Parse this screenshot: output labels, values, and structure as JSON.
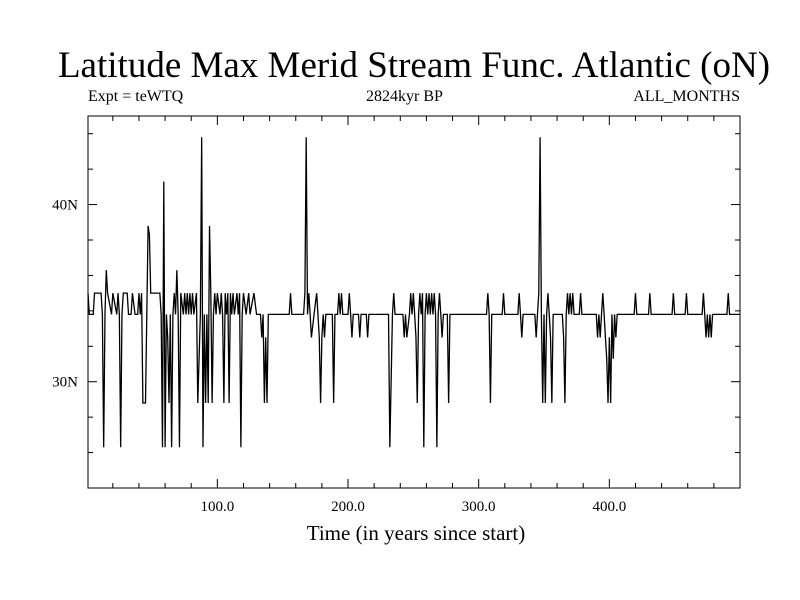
{
  "chart_data": {
    "type": "line",
    "title": "Latitude Max Merid Stream Func. Atlantic (oN)",
    "subtitle_left": "Expt = teWTQ",
    "subtitle_center": "2824kyr BP",
    "subtitle_right": "ALL_MONTHS",
    "xlabel": "Time (in years since start)",
    "ylabel": "",
    "xlim": [
      1,
      500
    ],
    "ylim": [
      24,
      45
    ],
    "x_ticks": [
      {
        "value": 100,
        "label": "100.0"
      },
      {
        "value": 200,
        "label": "200.0"
      },
      {
        "value": 300,
        "label": "300.0"
      },
      {
        "value": 400,
        "label": "400.0"
      }
    ],
    "y_ticks": [
      {
        "value": 30,
        "label": "30N"
      },
      {
        "value": 40,
        "label": "40N"
      }
    ],
    "grid": false,
    "series": [
      {
        "color": "#000000",
        "points": [
          [
            1,
            35.0
          ],
          [
            2,
            33.8
          ],
          [
            5,
            33.8
          ],
          [
            6,
            35.0
          ],
          [
            11,
            35.0
          ],
          [
            12,
            33.8
          ],
          [
            13,
            26.3
          ],
          [
            14,
            33.8
          ],
          [
            15,
            36.3
          ],
          [
            16,
            35.0
          ],
          [
            19,
            33.8
          ],
          [
            20,
            35.0
          ],
          [
            23,
            33.8
          ],
          [
            24,
            35.0
          ],
          [
            25,
            33.8
          ],
          [
            26,
            26.3
          ],
          [
            27,
            33.8
          ],
          [
            28,
            35.0
          ],
          [
            31,
            35.0
          ],
          [
            32,
            33.8
          ],
          [
            34,
            33.8
          ],
          [
            35,
            35.0
          ],
          [
            37,
            33.8
          ],
          [
            39,
            33.8
          ],
          [
            40,
            35.0
          ],
          [
            41,
            33.8
          ],
          [
            42,
            35.0
          ],
          [
            43,
            28.8
          ],
          [
            45,
            28.8
          ],
          [
            46,
            33.8
          ],
          [
            47,
            38.8
          ],
          [
            48,
            38.3
          ],
          [
            49,
            35.0
          ],
          [
            56,
            35.0
          ],
          [
            57,
            33.8
          ],
          [
            58,
            26.3
          ],
          [
            59,
            41.3
          ],
          [
            60,
            26.3
          ],
          [
            61,
            33.8
          ],
          [
            62,
            32.5
          ],
          [
            63,
            28.8
          ],
          [
            64,
            33.8
          ],
          [
            65,
            26.3
          ],
          [
            66,
            33.8
          ],
          [
            67,
            35.0
          ],
          [
            68,
            33.8
          ],
          [
            69,
            36.3
          ],
          [
            70,
            33.8
          ],
          [
            71,
            26.3
          ],
          [
            72,
            35.0
          ],
          [
            74,
            33.8
          ],
          [
            75,
            35.0
          ],
          [
            76,
            33.8
          ],
          [
            77,
            35.0
          ],
          [
            78,
            33.8
          ],
          [
            79,
            35.0
          ],
          [
            80,
            33.8
          ],
          [
            81,
            35.0
          ],
          [
            82,
            33.8
          ],
          [
            84,
            35.0
          ],
          [
            85,
            28.8
          ],
          [
            87,
            33.8
          ],
          [
            88,
            43.8
          ],
          [
            89,
            26.3
          ],
          [
            90,
            33.8
          ],
          [
            91,
            28.8
          ],
          [
            92,
            33.8
          ],
          [
            93,
            28.8
          ],
          [
            94,
            38.8
          ],
          [
            95,
            35.0
          ],
          [
            96,
            28.8
          ],
          [
            97,
            33.8
          ],
          [
            98,
            35.0
          ],
          [
            99,
            33.8
          ],
          [
            100,
            35.0
          ],
          [
            102,
            33.8
          ],
          [
            103,
            35.0
          ],
          [
            104,
            33.8
          ],
          [
            105,
            28.8
          ],
          [
            106,
            35.0
          ],
          [
            107,
            33.8
          ],
          [
            108,
            35.0
          ],
          [
            109,
            28.8
          ],
          [
            110,
            35.0
          ],
          [
            111,
            33.8
          ],
          [
            112,
            35.0
          ],
          [
            113,
            33.8
          ],
          [
            115,
            35.0
          ],
          [
            116,
            33.8
          ],
          [
            117,
            35.0
          ],
          [
            118,
            26.3
          ],
          [
            119,
            33.8
          ],
          [
            120,
            35.0
          ],
          [
            122,
            33.8
          ],
          [
            124,
            35.0
          ],
          [
            125,
            33.8
          ],
          [
            128,
            35.0
          ],
          [
            130,
            33.8
          ],
          [
            133,
            33.8
          ],
          [
            134,
            32.5
          ],
          [
            135,
            33.8
          ],
          [
            136,
            28.8
          ],
          [
            137,
            32.5
          ],
          [
            138,
            28.8
          ],
          [
            139,
            33.8
          ],
          [
            155,
            33.8
          ],
          [
            156,
            35.0
          ],
          [
            157,
            33.8
          ],
          [
            166,
            33.8
          ],
          [
            167,
            35.0
          ],
          [
            168,
            43.8
          ],
          [
            169,
            33.8
          ],
          [
            170,
            35.0
          ],
          [
            171,
            33.8
          ],
          [
            172,
            32.5
          ],
          [
            174,
            33.8
          ],
          [
            176,
            35.0
          ],
          [
            177,
            33.8
          ],
          [
            178,
            32.5
          ],
          [
            179,
            28.8
          ],
          [
            180,
            32.5
          ],
          [
            181,
            33.8
          ],
          [
            182,
            32.5
          ],
          [
            183,
            33.8
          ],
          [
            188,
            33.8
          ],
          [
            189,
            28.8
          ],
          [
            190,
            33.8
          ],
          [
            192,
            33.8
          ],
          [
            193,
            35.0
          ],
          [
            194,
            33.8
          ],
          [
            195,
            35.0
          ],
          [
            196,
            33.8
          ],
          [
            200,
            33.8
          ],
          [
            201,
            35.0
          ],
          [
            202,
            33.8
          ],
          [
            203,
            32.5
          ],
          [
            204,
            33.8
          ],
          [
            208,
            33.8
          ],
          [
            209,
            32.5
          ],
          [
            210,
            33.8
          ],
          [
            214,
            33.8
          ],
          [
            215,
            32.5
          ],
          [
            216,
            33.8
          ],
          [
            231,
            33.8
          ],
          [
            232,
            26.3
          ],
          [
            234,
            33.8
          ],
          [
            235,
            35.0
          ],
          [
            236,
            33.8
          ],
          [
            242,
            33.8
          ],
          [
            243,
            32.5
          ],
          [
            244,
            33.8
          ],
          [
            245,
            32.5
          ],
          [
            247,
            33.8
          ],
          [
            248,
            35.0
          ],
          [
            249,
            33.8
          ],
          [
            250,
            35.0
          ],
          [
            251,
            33.8
          ],
          [
            252,
            32.5
          ],
          [
            253,
            28.8
          ],
          [
            254,
            33.8
          ],
          [
            255,
            35.0
          ],
          [
            256,
            33.8
          ],
          [
            257,
            35.0
          ],
          [
            258,
            26.3
          ],
          [
            259,
            33.8
          ],
          [
            260,
            35.0
          ],
          [
            261,
            33.8
          ],
          [
            262,
            35.0
          ],
          [
            263,
            33.8
          ],
          [
            264,
            35.0
          ],
          [
            265,
            33.8
          ],
          [
            266,
            35.0
          ],
          [
            267,
            33.8
          ],
          [
            268,
            26.3
          ],
          [
            269,
            33.8
          ],
          [
            270,
            35.0
          ],
          [
            271,
            33.8
          ],
          [
            272,
            32.5
          ],
          [
            273,
            33.8
          ],
          [
            276,
            33.8
          ],
          [
            277,
            28.8
          ],
          [
            278,
            33.8
          ],
          [
            306,
            33.8
          ],
          [
            307,
            35.0
          ],
          [
            308,
            33.8
          ],
          [
            309,
            28.8
          ],
          [
            310,
            33.8
          ],
          [
            318,
            33.8
          ],
          [
            319,
            35.0
          ],
          [
            320,
            33.8
          ],
          [
            330,
            33.8
          ],
          [
            331,
            35.0
          ],
          [
            332,
            33.8
          ],
          [
            333,
            32.5
          ],
          [
            334,
            33.8
          ],
          [
            343,
            33.8
          ],
          [
            344,
            32.5
          ],
          [
            345,
            33.8
          ],
          [
            346,
            35.0
          ],
          [
            347,
            43.8
          ],
          [
            348,
            33.8
          ],
          [
            349,
            28.8
          ],
          [
            350,
            33.8
          ],
          [
            351,
            28.8
          ],
          [
            352,
            33.8
          ],
          [
            353,
            35.0
          ],
          [
            354,
            33.8
          ],
          [
            355,
            32.5
          ],
          [
            356,
            28.8
          ],
          [
            357,
            33.8
          ],
          [
            364,
            33.8
          ],
          [
            365,
            32.5
          ],
          [
            366,
            28.8
          ],
          [
            367,
            33.8
          ],
          [
            368,
            35.0
          ],
          [
            369,
            33.8
          ],
          [
            370,
            35.0
          ],
          [
            371,
            33.8
          ],
          [
            372,
            35.0
          ],
          [
            373,
            33.8
          ],
          [
            377,
            33.8
          ],
          [
            378,
            35.0
          ],
          [
            379,
            33.8
          ],
          [
            390,
            33.8
          ],
          [
            391,
            32.5
          ],
          [
            392,
            33.8
          ],
          [
            393,
            32.5
          ],
          [
            394,
            33.8
          ],
          [
            395,
            35.0
          ],
          [
            396,
            33.8
          ],
          [
            397,
            32.5
          ],
          [
            398,
            31.3
          ],
          [
            399,
            28.8
          ],
          [
            400,
            32.5
          ],
          [
            401,
            28.8
          ],
          [
            402,
            33.8
          ],
          [
            403,
            31.3
          ],
          [
            404,
            33.8
          ],
          [
            405,
            32.5
          ],
          [
            406,
            33.8
          ],
          [
            419,
            33.8
          ],
          [
            420,
            35.0
          ],
          [
            421,
            33.8
          ],
          [
            430,
            33.8
          ],
          [
            431,
            35.0
          ],
          [
            432,
            33.8
          ],
          [
            448,
            33.8
          ],
          [
            449,
            35.0
          ],
          [
            450,
            33.8
          ],
          [
            458,
            33.8
          ],
          [
            459,
            35.0
          ],
          [
            460,
            33.8
          ],
          [
            471,
            33.8
          ],
          [
            472,
            35.0
          ],
          [
            473,
            33.8
          ],
          [
            474,
            32.5
          ],
          [
            475,
            33.8
          ],
          [
            476,
            32.5
          ],
          [
            477,
            33.8
          ],
          [
            478,
            32.5
          ],
          [
            479,
            33.8
          ],
          [
            490,
            33.8
          ],
          [
            491,
            35.0
          ],
          [
            492,
            33.8
          ],
          [
            500,
            33.8
          ]
        ]
      }
    ]
  }
}
